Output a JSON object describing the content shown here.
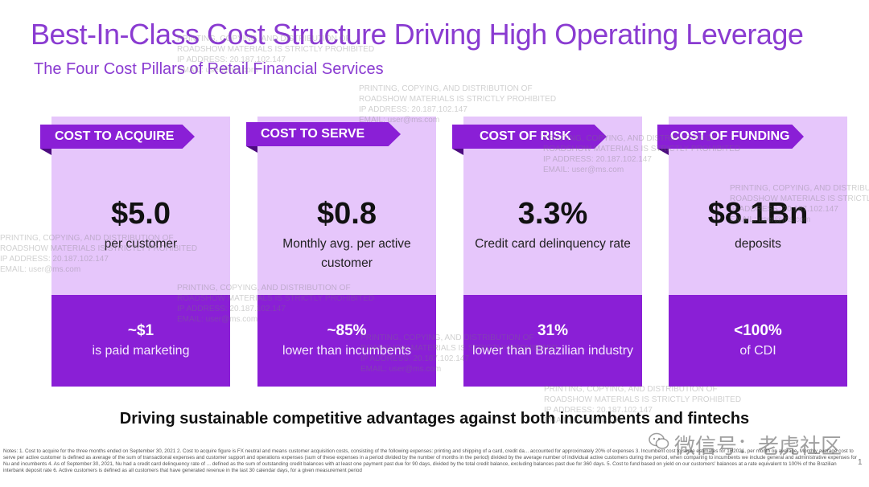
{
  "title": "Best-In-Class Cost Structure Driving High Operating Leverage",
  "subtitle": "The Four Cost Pillars of Retail Financial Services",
  "pillars": [
    {
      "tag": "COST TO ACQUIRE",
      "value": "$5.0",
      "desc": "per customer",
      "stat": "~$1",
      "stat_desc": "is paid marketing"
    },
    {
      "tag": "COST TO SERVE",
      "value": "$0.8",
      "desc": "Monthly avg. per active customer",
      "stat": "~85%",
      "stat_desc": "lower than incumbents"
    },
    {
      "tag": "COST OF RISK",
      "value": "3.3%",
      "desc": "Credit card delinquency rate",
      "stat": "31%",
      "stat_desc": "lower than Brazilian industry"
    },
    {
      "tag": "COST OF FUNDING",
      "value": "$8.1Bn",
      "desc": "deposits",
      "stat": "<100%",
      "stat_desc": "of CDI"
    }
  ],
  "tagline": "Driving sustainable competitive advantages against both incumbents and fintechs",
  "notes": "Notes: 1. Cost to acquire for the three months ended on September 30, 2021 2. Cost to acquire figure is FX neutral and means customer acquisition costs, consisting of the following expenses: printing and shipping of a card, credit da... accounted for approximately 20% of expenses 3. Incumbent cost to serve estimates for 1H2021, per month on average. Monthly average cost to serve per active customer is defined as average of the sum of transactional expenses and customer support and operations expenses (sum of these expenses in a period divided by the number of months in the period) divided by the average number of individual active customers during the period, when comparing to incumbents we include general and administrative expenses for Nu and incumbents 4. As of September 30, 2021, Nu had a credit card delinquency rate of ... defined as the sum of outstanding credit balances with at least one payment past due for 90 days, divided by the total credit balance, excluding balances past due for 360 days. 5. Cost to fund based on yield on our customers' balances at a rate equivalent to 100% of the Brazilian interbank deposit rate 6. Active customers is defined as all customers that have generated revenue in the last 30 calendar days, for a given measurement period",
  "watermark": {
    "line1": "PRINTING, COPYING, AND DISTRIBUTION OF",
    "line2": "ROADSHOW MATERIALS IS STRICTLY PROHIBITED",
    "line3": "IP ADDRESS: 20.187.102.147",
    "line4": "EMAIL: user@ms.com"
  },
  "wechat_mark": "微信号：老虎社区",
  "page_number": "1",
  "colors": {
    "accent": "#8a3bd1",
    "card_light": "#e6c6fb",
    "card_dark": "#8a1fd6"
  }
}
